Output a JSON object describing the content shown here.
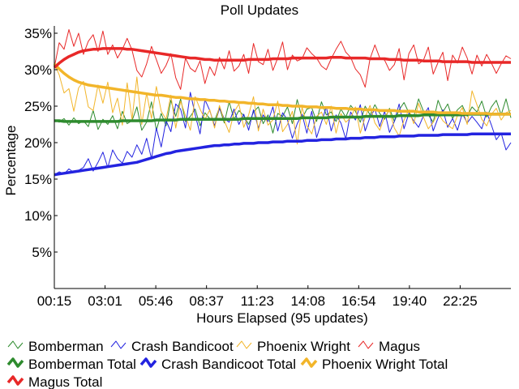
{
  "chart_data": {
    "type": "line",
    "title": "Poll Updates",
    "xlabel": "Hours Elapsed (95 updates)",
    "ylabel": "Percentage",
    "x_tick_labels": [
      "00:15",
      "03:01",
      "05:46",
      "08:37",
      "11:23",
      "14:08",
      "16:54",
      "19:40",
      "22:25"
    ],
    "y_tick_labels": [
      "5%",
      "10%",
      "15%",
      "20%",
      "25%",
      "30%",
      "35%"
    ],
    "y_ticks": [
      5,
      10,
      15,
      20,
      25,
      30,
      35
    ],
    "ylim": [
      0,
      36
    ],
    "grid": false,
    "legend_position": "bottom",
    "series": [
      {
        "name": "Bomberman",
        "kind": "update",
        "color": "#2e8b2e",
        "values": [
          23.1,
          22.8,
          23.3,
          22.4,
          23.4,
          22.6,
          23.0,
          22.2,
          24.4,
          21.8,
          23.2,
          22.5,
          23.7,
          21.9,
          24.3,
          22.6,
          23.0,
          24.9,
          21.7,
          22.8,
          25.6,
          21.7,
          24.0,
          22.3,
          25.8,
          23.6,
          26.0,
          22.9,
          23.6,
          24.6,
          22.3,
          24.1,
          23.3,
          23.0,
          24.8,
          22.7,
          25.6,
          23.2,
          24.4,
          23.7,
          22.5,
          24.2,
          24.9,
          22.6,
          23.8,
          21.3,
          24.0,
          23.6,
          24.9,
          22.6,
          25.9,
          23.3,
          24.6,
          24.8,
          22.9,
          25.6,
          23.8,
          24.2,
          22.9,
          24.6,
          23.5,
          25.1,
          24.3,
          22.8,
          25.0,
          23.8,
          25.2,
          24.0,
          23.2,
          24.7,
          22.9,
          24.5,
          25.5,
          24.1,
          23.6,
          26.0,
          24.3,
          23.8,
          22.8,
          25.8,
          24.2,
          25.3,
          23.3,
          24.5,
          25.1,
          23.6,
          24.9,
          24.2,
          25.7,
          23.5,
          24.9,
          25.8,
          23.8,
          26.0,
          23.4
        ]
      },
      {
        "name": "Crash Bandicoot",
        "kind": "update",
        "color": "#2323e0",
        "values": [
          15.6,
          16.0,
          15.7,
          16.4,
          15.9,
          16.2,
          16.6,
          17.8,
          16.1,
          17.3,
          18.7,
          16.6,
          19.0,
          17.8,
          17.2,
          18.8,
          18.0,
          19.7,
          18.4,
          20.6,
          17.8,
          22.0,
          19.4,
          23.0,
          21.5,
          25.3,
          24.6,
          22.0,
          26.9,
          23.8,
          21.2,
          25.9,
          24.4,
          22.3,
          24.7,
          23.3,
          22.8,
          24.6,
          22.5,
          23.9,
          21.7,
          24.5,
          22.0,
          23.8,
          22.9,
          24.9,
          21.6,
          24.1,
          23.1,
          20.6,
          22.6,
          23.9,
          21.3,
          24.3,
          20.7,
          22.8,
          24.9,
          21.6,
          23.8,
          22.7,
          20.5,
          24.2,
          23.1,
          25.2,
          21.6,
          23.5,
          24.6,
          22.2,
          24.3,
          21.4,
          22.9,
          25.3,
          21.9,
          24.0,
          23.0,
          22.1,
          23.7,
          24.8,
          21.6,
          23.4,
          24.5,
          22.1,
          23.3,
          21.7,
          24.0,
          22.7,
          23.6,
          22.8,
          21.9,
          24.2,
          22.4,
          20.4,
          21.3,
          19.0,
          20.0
        ]
      },
      {
        "name": "Phoenix Wright",
        "kind": "update",
        "color": "#f2b52a",
        "values": [
          30.8,
          29.3,
          26.8,
          27.4,
          24.3,
          27.5,
          28.4,
          24.9,
          24.4,
          27.9,
          25.4,
          28.3,
          24.1,
          26.1,
          22.4,
          28.2,
          23.2,
          29.0,
          22.5,
          26.8,
          23.3,
          27.7,
          24.3,
          23.2,
          26.5,
          22.0,
          25.7,
          23.7,
          21.7,
          26.3,
          24.6,
          23.2,
          24.5,
          22.0,
          25.1,
          23.0,
          21.4,
          24.2,
          25.3,
          22.1,
          23.8,
          26.3,
          21.6,
          24.6,
          22.4,
          23.1,
          25.7,
          21.5,
          22.5,
          24.3,
          19.8,
          24.9,
          22.3,
          21.2,
          23.6,
          24.2,
          22.5,
          25.0,
          21.3,
          24.0,
          22.8,
          23.4,
          24.9,
          21.3,
          23.5,
          25.1,
          22.7,
          21.7,
          23.6,
          24.4,
          22.0,
          20.9,
          23.1,
          24.5,
          22.6,
          25.4,
          23.5,
          21.9,
          22.8,
          24.1,
          23.0,
          22.4,
          21.9,
          23.7,
          24.8,
          22.5,
          27.1,
          25.2,
          23.2,
          22.3,
          23.9,
          24.7,
          23.1,
          24.1,
          24.4
        ]
      },
      {
        "name": "Magus",
        "kind": "update",
        "color": "#e82828",
        "values": [
          30.3,
          33.7,
          32.8,
          35.5,
          33.2,
          35.0,
          32.1,
          33.9,
          34.8,
          32.5,
          35.3,
          32.1,
          33.4,
          31.6,
          32.8,
          34.3,
          32.7,
          29.9,
          29.0,
          30.8,
          33.2,
          31.4,
          29.5,
          30.6,
          32.2,
          28.9,
          27.3,
          31.6,
          30.2,
          29.7,
          31.2,
          28.1,
          30.4,
          29.2,
          31.7,
          30.1,
          32.6,
          29.8,
          30.5,
          32.1,
          29.5,
          33.6,
          31.1,
          30.7,
          32.8,
          29.9,
          31.6,
          33.8,
          30.0,
          32.0,
          31.2,
          31.5,
          33.0,
          32.2,
          31.6,
          30.5,
          30.0,
          31.5,
          32.8,
          33.9,
          32.4,
          31.7,
          30.1,
          29.3,
          27.6,
          31.5,
          33.4,
          31.6,
          31.3,
          29.9,
          30.7,
          32.9,
          28.6,
          32.2,
          33.4,
          30.8,
          31.3,
          33.1,
          29.4,
          31.0,
          32.4,
          28.5,
          32.0,
          30.9,
          33.1,
          31.6,
          29.4,
          32.0,
          30.5,
          32.1,
          30.9,
          29.5,
          30.8,
          31.9,
          31.5
        ]
      },
      {
        "name": "Bomberman Total",
        "kind": "total",
        "color": "#2e8b2e",
        "values": [
          23.0,
          23.0,
          22.9,
          22.9,
          22.9,
          22.9,
          22.9,
          22.9,
          22.9,
          22.9,
          22.9,
          22.9,
          22.9,
          22.9,
          23.0,
          23.0,
          23.0,
          23.0,
          23.0,
          23.0,
          23.0,
          23.1,
          23.1,
          23.1,
          23.1,
          23.1,
          23.2,
          23.2,
          23.2,
          23.2,
          23.2,
          23.2,
          23.2,
          23.2,
          23.2,
          23.2,
          23.2,
          23.2,
          23.2,
          23.3,
          23.3,
          23.3,
          23.3,
          23.3,
          23.3,
          23.3,
          23.3,
          23.3,
          23.3,
          23.3,
          23.3,
          23.4,
          23.4,
          23.4,
          23.4,
          23.4,
          23.4,
          23.5,
          23.5,
          23.5,
          23.5,
          23.5,
          23.5,
          23.5,
          23.6,
          23.6,
          23.6,
          23.6,
          23.6,
          23.6,
          23.6,
          23.7,
          23.7,
          23.7,
          23.7,
          23.7,
          23.8,
          23.8,
          23.8,
          23.8,
          23.8,
          23.8,
          23.8,
          23.8,
          23.8,
          23.9,
          23.9,
          23.9,
          23.9,
          23.9,
          23.9,
          23.9,
          23.9,
          23.9,
          23.9
        ]
      },
      {
        "name": "Crash Bandicoot Total",
        "kind": "total",
        "color": "#2323e0",
        "values": [
          15.6,
          15.7,
          15.8,
          15.9,
          16.0,
          16.1,
          16.2,
          16.3,
          16.4,
          16.5,
          16.6,
          16.7,
          16.8,
          16.9,
          17.0,
          17.1,
          17.2,
          17.3,
          17.5,
          17.7,
          17.9,
          18.1,
          18.3,
          18.5,
          18.6,
          18.8,
          18.9,
          19.0,
          19.1,
          19.2,
          19.3,
          19.4,
          19.5,
          19.6,
          19.6,
          19.7,
          19.7,
          19.8,
          19.8,
          19.9,
          19.9,
          19.9,
          20.0,
          20.0,
          20.0,
          20.1,
          20.1,
          20.1,
          20.2,
          20.2,
          20.2,
          20.2,
          20.3,
          20.3,
          20.3,
          20.4,
          20.4,
          20.4,
          20.5,
          20.5,
          20.5,
          20.6,
          20.6,
          20.6,
          20.7,
          20.7,
          20.7,
          20.8,
          20.8,
          20.8,
          20.8,
          20.9,
          20.9,
          20.9,
          20.9,
          21.0,
          21.0,
          21.0,
          21.0,
          21.0,
          21.1,
          21.1,
          21.1,
          21.1,
          21.1,
          21.1,
          21.2,
          21.2,
          21.2,
          21.2,
          21.2,
          21.2,
          21.2,
          21.2,
          21.2
        ]
      },
      {
        "name": "Phoenix Wright Total",
        "kind": "total",
        "color": "#f2b52a",
        "values": [
          30.8,
          30.1,
          29.5,
          29.0,
          28.6,
          28.3,
          28.1,
          27.9,
          27.8,
          27.7,
          27.6,
          27.5,
          27.4,
          27.3,
          27.2,
          27.1,
          27.0,
          26.9,
          26.8,
          26.7,
          26.6,
          26.5,
          26.5,
          26.4,
          26.3,
          26.2,
          26.2,
          26.1,
          26.0,
          26.0,
          25.9,
          25.9,
          25.8,
          25.8,
          25.7,
          25.7,
          25.6,
          25.6,
          25.5,
          25.5,
          25.4,
          25.4,
          25.3,
          25.3,
          25.2,
          25.2,
          25.2,
          25.1,
          25.1,
          25.0,
          25.0,
          25.0,
          24.9,
          24.9,
          24.9,
          24.8,
          24.8,
          24.8,
          24.7,
          24.7,
          24.7,
          24.6,
          24.6,
          24.6,
          24.5,
          24.5,
          24.5,
          24.4,
          24.4,
          24.4,
          24.4,
          24.3,
          24.3,
          24.3,
          24.3,
          24.2,
          24.2,
          24.2,
          24.2,
          24.1,
          24.1,
          24.1,
          24.1,
          24.1,
          24.0,
          24.0,
          24.0,
          24.0,
          24.0,
          24.0,
          23.9,
          23.9,
          23.9,
          23.9,
          23.9
        ]
      },
      {
        "name": "Magus Total",
        "kind": "total",
        "color": "#e82828",
        "values": [
          30.3,
          30.9,
          31.4,
          31.8,
          32.1,
          32.4,
          32.6,
          32.7,
          32.8,
          32.8,
          32.9,
          32.9,
          32.9,
          32.9,
          32.9,
          32.8,
          32.8,
          32.7,
          32.6,
          32.5,
          32.4,
          32.3,
          32.2,
          32.1,
          32.0,
          31.9,
          31.8,
          31.7,
          31.6,
          31.6,
          31.5,
          31.4,
          31.4,
          31.3,
          31.3,
          31.3,
          31.3,
          31.3,
          31.3,
          31.3,
          31.4,
          31.4,
          31.4,
          31.4,
          31.4,
          31.5,
          31.5,
          31.5,
          31.5,
          31.6,
          31.6,
          31.6,
          31.6,
          31.6,
          31.6,
          31.6,
          31.6,
          31.7,
          31.7,
          31.7,
          31.6,
          31.6,
          31.6,
          31.6,
          31.6,
          31.5,
          31.5,
          31.5,
          31.5,
          31.4,
          31.4,
          31.4,
          31.3,
          31.3,
          31.3,
          31.3,
          31.2,
          31.2,
          31.2,
          31.2,
          31.1,
          31.1,
          31.1,
          31.1,
          31.1,
          31.1,
          31.0,
          31.0,
          31.0,
          31.0,
          31.0,
          31.0,
          31.0,
          31.0,
          31.0
        ]
      }
    ]
  }
}
